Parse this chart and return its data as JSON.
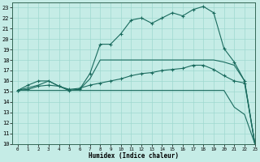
{
  "title": "",
  "xlabel": "Humidex (Indice chaleur)",
  "xlim": [
    -0.5,
    23
  ],
  "ylim": [
    10,
    23.5
  ],
  "xticks": [
    0,
    1,
    2,
    3,
    4,
    5,
    6,
    7,
    8,
    9,
    10,
    11,
    12,
    13,
    14,
    15,
    16,
    17,
    18,
    19,
    20,
    21,
    22,
    23
  ],
  "yticks": [
    10,
    11,
    12,
    13,
    14,
    15,
    16,
    17,
    18,
    19,
    20,
    21,
    22,
    23
  ],
  "bg_color": "#c5ece6",
  "line_color": "#1a6b5e",
  "grid_color": "#9fd8d0",
  "line1_x": [
    0,
    1,
    2,
    3,
    4,
    5,
    6,
    7,
    8,
    9,
    10,
    11,
    12,
    13,
    14,
    15,
    16,
    17,
    18,
    19,
    20,
    21,
    22,
    23
  ],
  "line1_y": [
    15.1,
    15.6,
    16.0,
    16.0,
    15.5,
    15.1,
    15.2,
    16.7,
    19.5,
    19.5,
    20.5,
    21.8,
    22.0,
    21.5,
    22.0,
    22.5,
    22.2,
    22.8,
    23.1,
    22.5,
    19.1,
    17.8,
    16.0,
    10.0
  ],
  "line2_x": [
    0,
    1,
    2,
    3,
    4,
    5,
    6,
    7,
    8,
    9,
    10,
    11,
    12,
    13,
    14,
    15,
    16,
    17,
    18,
    19,
    20,
    21,
    22,
    23
  ],
  "line2_y": [
    15.1,
    15.2,
    15.5,
    15.6,
    15.5,
    15.2,
    15.3,
    15.6,
    15.8,
    16.0,
    16.2,
    16.5,
    16.7,
    16.8,
    17.0,
    17.1,
    17.2,
    17.5,
    17.5,
    17.1,
    16.5,
    16.0,
    15.8,
    10.0
  ],
  "line3_x": [
    0,
    20,
    21,
    22,
    23
  ],
  "line3_y": [
    15.1,
    15.1,
    13.5,
    12.8,
    10.0
  ],
  "line4_x": [
    0,
    2,
    3,
    4,
    5,
    6,
    7,
    8,
    19,
    20,
    21,
    22,
    23
  ],
  "line4_y": [
    15.1,
    15.6,
    16.0,
    15.5,
    15.1,
    15.2,
    16.2,
    18.0,
    18.0,
    17.8,
    17.5,
    16.0,
    10.0
  ]
}
